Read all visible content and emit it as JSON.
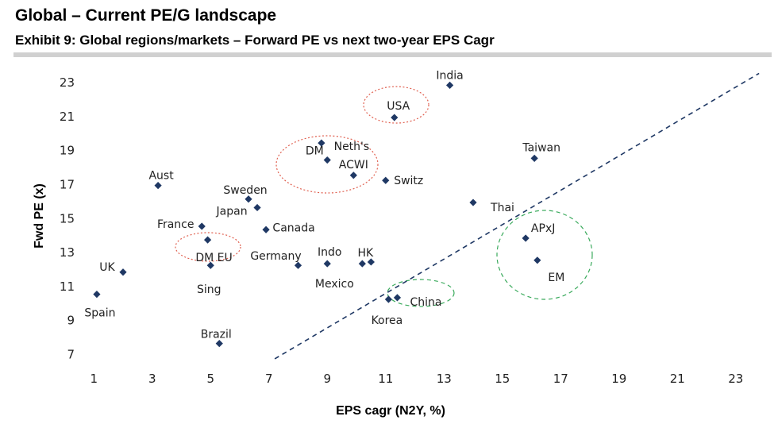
{
  "header": {
    "title": "Global – Current PE/G landscape",
    "subtitle": "Exhibit 9: Global regions/markets – Forward PE vs next two-year EPS Cagr"
  },
  "colors": {
    "marker": "#1f3864",
    "trendline": "#1f3864",
    "red_circle": "#e06050",
    "green_circle": "#3aaa5c",
    "rule": "#d0d0d0"
  },
  "chart_data": {
    "type": "scatter",
    "title": "Exhibit 9: Global regions/markets – Forward PE vs next two-year EPS Cagr",
    "xlabel": "EPS cagr (N2Y, %)",
    "ylabel": "Fwd PE (x)",
    "xlim": [
      0,
      24
    ],
    "ylim": [
      6.5,
      24
    ],
    "xticks": [
      1,
      3,
      5,
      7,
      9,
      11,
      13,
      15,
      17,
      19,
      21,
      23
    ],
    "yticks": [
      7,
      9,
      11,
      13,
      15,
      17,
      19,
      21,
      23
    ],
    "grid": false,
    "points": [
      {
        "name": "India",
        "x": 13.2,
        "y": 22.8
      },
      {
        "name": "USA",
        "x": 11.3,
        "y": 20.9
      },
      {
        "name": "Neth's",
        "x": 8.8,
        "y": 19.4
      },
      {
        "name": "DM",
        "x": 9.0,
        "y": 18.4
      },
      {
        "name": "ACWI",
        "x": 9.9,
        "y": 17.5
      },
      {
        "name": "Switz",
        "x": 11.0,
        "y": 17.2
      },
      {
        "name": "Taiwan",
        "x": 16.1,
        "y": 18.5
      },
      {
        "name": "Aust",
        "x": 3.2,
        "y": 16.9
      },
      {
        "name": "Sweden",
        "x": 6.3,
        "y": 16.1
      },
      {
        "name": "Japan",
        "x": 6.6,
        "y": 15.6
      },
      {
        "name": "Thai",
        "x": 14.0,
        "y": 15.9
      },
      {
        "name": "France",
        "x": 4.7,
        "y": 14.5
      },
      {
        "name": "Canada",
        "x": 6.9,
        "y": 14.3
      },
      {
        "name": "APxJ",
        "x": 15.8,
        "y": 13.8
      },
      {
        "name": "DM EU",
        "x": 4.9,
        "y": 13.7
      },
      {
        "name": "EM",
        "x": 16.2,
        "y": 12.5
      },
      {
        "name": "UK",
        "x": 2.0,
        "y": 11.8
      },
      {
        "name": "Sing",
        "x": 5.0,
        "y": 12.2
      },
      {
        "name": "Germany",
        "x": 8.0,
        "y": 12.2
      },
      {
        "name": "Indo",
        "x": 9.0,
        "y": 12.3
      },
      {
        "name": "HK",
        "x": 10.2,
        "y": 12.3
      },
      {
        "name": "Mexico",
        "x": 10.5,
        "y": 12.4
      },
      {
        "name": "Spain",
        "x": 1.1,
        "y": 10.5
      },
      {
        "name": "Korea",
        "x": 11.1,
        "y": 10.2
      },
      {
        "name": "China",
        "x": 11.4,
        "y": 10.3
      },
      {
        "name": "Brazil",
        "x": 5.3,
        "y": 7.6
      }
    ],
    "trendline": {
      "style": "dashed",
      "from": {
        "x": 7.2,
        "y": 6.7
      },
      "to": {
        "x": 23.8,
        "y": 23.5
      }
    },
    "highlights": [
      {
        "label": "USA",
        "color": "red",
        "style": "dotted"
      },
      {
        "label": "DM / ACWI",
        "color": "red",
        "style": "dotted"
      },
      {
        "label": "DM EU",
        "color": "red",
        "style": "dotted"
      },
      {
        "label": "APxJ / EM",
        "color": "green",
        "style": "dashed"
      },
      {
        "label": "China",
        "color": "green",
        "style": "dashed"
      }
    ]
  }
}
